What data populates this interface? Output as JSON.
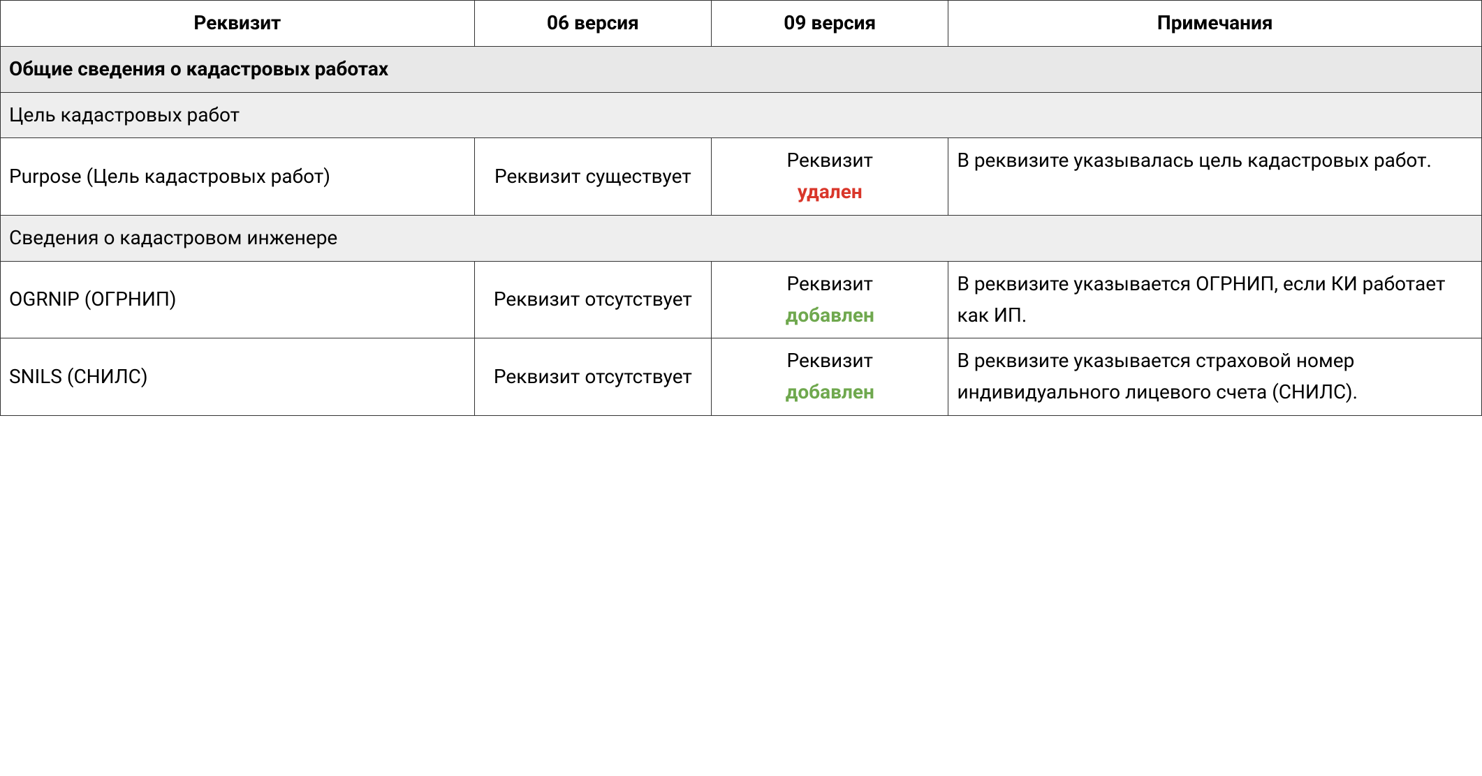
{
  "colors": {
    "removed": "#d9362a",
    "added": "#6fa84e",
    "section_bg": "#e8e8e8",
    "sub_bg": "#eeeeee",
    "border": "#333333"
  },
  "headers": {
    "attr": "Реквизит",
    "v06": "06 версия",
    "v09": "09 версия",
    "notes": "Примечания"
  },
  "sec1": {
    "title": "Общие сведения о кадастровых работах"
  },
  "sub1": {
    "title": "Цель кадастровых работ"
  },
  "r1": {
    "attr": "Purpose (Цель кадастровых работ)",
    "v06": "Реквизит существует",
    "v09a": "Реквизит",
    "v09b": "удален",
    "note": "В реквизите указывалась цель кадастровых работ."
  },
  "sub2": {
    "title": "Сведения о кадастровом инженере"
  },
  "r2": {
    "attr": "OGRNIP (ОГРНИП)",
    "v06": "Реквизит отсутствует",
    "v09a": "Реквизит",
    "v09b": "добавлен",
    "note": "В реквизите указывается ОГРНИП, если КИ работает как ИП."
  },
  "r3": {
    "attr": "SNILS (СНИЛС)",
    "v06": "Реквизит отсутствует",
    "v09a": "Реквизит",
    "v09b": "добавлен",
    "note": "В реквизите указывается страховой номер индивидуального лицевого счета (СНИЛС)."
  }
}
